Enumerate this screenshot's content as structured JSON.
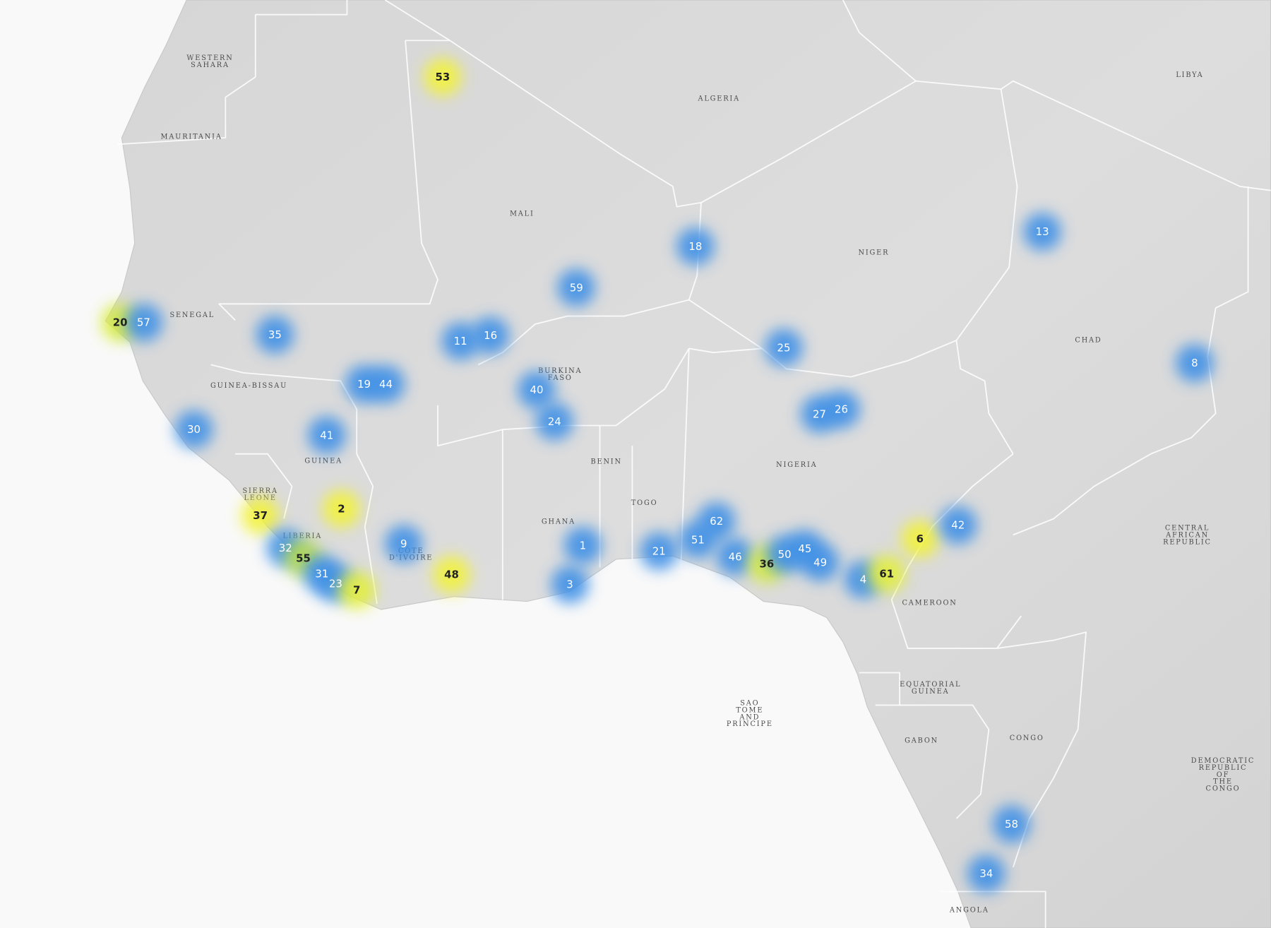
{
  "countries": [
    {
      "lines": [
        "WESTERN",
        "SAHARA"
      ]
    },
    {
      "lines": [
        "MAURITANIA"
      ]
    },
    {
      "lines": [
        "ALGERIA"
      ]
    },
    {
      "lines": [
        "LIBYA"
      ]
    },
    {
      "lines": [
        "MALI"
      ]
    },
    {
      "lines": [
        "NIGER"
      ]
    },
    {
      "lines": [
        "SENEGAL"
      ]
    },
    {
      "lines": [
        "CHAD"
      ]
    },
    {
      "lines": [
        "GUINEA-BISSAU"
      ]
    },
    {
      "lines": [
        "BURKINA",
        "FASO"
      ]
    },
    {
      "lines": [
        "GUINEA"
      ]
    },
    {
      "lines": [
        "NIGERIA"
      ]
    },
    {
      "lines": [
        "BENIN"
      ]
    },
    {
      "lines": [
        "TOGO"
      ]
    },
    {
      "lines": [
        "SIERRA",
        "LEONE"
      ]
    },
    {
      "lines": [
        "GHANA"
      ]
    },
    {
      "lines": [
        "LIBERIA"
      ]
    },
    {
      "lines": [
        "CÔTE",
        "D'IVOIRE"
      ]
    },
    {
      "lines": [
        "CENTRAL",
        "AFRICAN",
        "REPUBLIC"
      ]
    },
    {
      "lines": [
        "CAMEROON"
      ]
    },
    {
      "lines": [
        "EQUATORIAL",
        "GUINEA"
      ]
    },
    {
      "lines": [
        "SAO",
        "TOME",
        "AND",
        "PRINCIPE"
      ]
    },
    {
      "lines": [
        "GABON"
      ]
    },
    {
      "lines": [
        "CONGO"
      ]
    },
    {
      "lines": [
        "DEMOCRATIC",
        "REPUBLIC",
        "OF",
        "THE",
        "CONGO"
      ]
    },
    {
      "lines": [
        "ANGOLA"
      ]
    }
  ],
  "markers": [
    {
      "id": 53,
      "color": "#f2f23a"
    },
    {
      "id": 20,
      "color": "#d8ec3c"
    },
    {
      "id": 57,
      "color": "#3d8fe6"
    },
    {
      "id": 35,
      "color": "#3d8fe6"
    },
    {
      "id": 11,
      "color": "#3d8fe6"
    },
    {
      "id": 16,
      "color": "#3d8fe6"
    },
    {
      "id": 59,
      "color": "#3d8fe6"
    },
    {
      "id": 18,
      "color": "#3d8fe6"
    },
    {
      "id": 13,
      "color": "#3d8fe6"
    },
    {
      "id": 25,
      "color": "#3d8fe6"
    },
    {
      "id": 8,
      "color": "#3d8fe6"
    },
    {
      "id": 19,
      "color": "#3d8fe6"
    },
    {
      "id": 44,
      "color": "#3d8fe6"
    },
    {
      "id": 40,
      "color": "#3d8fe6"
    },
    {
      "id": 24,
      "color": "#3d8fe6"
    },
    {
      "id": 27,
      "color": "#3d8fe6"
    },
    {
      "id": 26,
      "color": "#3d8fe6"
    },
    {
      "id": 30,
      "color": "#3d8fe6"
    },
    {
      "id": 41,
      "color": "#3d8fe6"
    },
    {
      "id": 37,
      "color": "#f2f23a"
    },
    {
      "id": 2,
      "color": "#f2f23a"
    },
    {
      "id": 9,
      "color": "#3d8fe6"
    },
    {
      "id": 32,
      "color": "#3d8fe6"
    },
    {
      "id": 55,
      "color": "#b8dd48"
    },
    {
      "id": 31,
      "color": "#3d8fe6"
    },
    {
      "id": 23,
      "color": "#3d8fe6"
    },
    {
      "id": 7,
      "color": "#e4f03a"
    },
    {
      "id": 48,
      "color": "#f2f23a"
    },
    {
      "id": 1,
      "color": "#3d8fe6"
    },
    {
      "id": 3,
      "color": "#3d8fe6"
    },
    {
      "id": 21,
      "color": "#3d8fe6"
    },
    {
      "id": 62,
      "color": "#3d8fe6"
    },
    {
      "id": 51,
      "color": "#3d8fe6"
    },
    {
      "id": 46,
      "color": "#3d8fe6"
    },
    {
      "id": 36,
      "color": "#d8ec3c"
    },
    {
      "id": 50,
      "color": "#3d8fe6"
    },
    {
      "id": 45,
      "color": "#3d8fe6"
    },
    {
      "id": 49,
      "color": "#3d8fe6"
    },
    {
      "id": 4,
      "color": "#3d8fe6"
    },
    {
      "id": 61,
      "color": "#e4f03a"
    },
    {
      "id": 6,
      "color": "#f2f23a"
    },
    {
      "id": 42,
      "color": "#3d8fe6"
    },
    {
      "id": 58,
      "color": "#3d8fe6"
    },
    {
      "id": 34,
      "color": "#3d8fe6"
    }
  ]
}
